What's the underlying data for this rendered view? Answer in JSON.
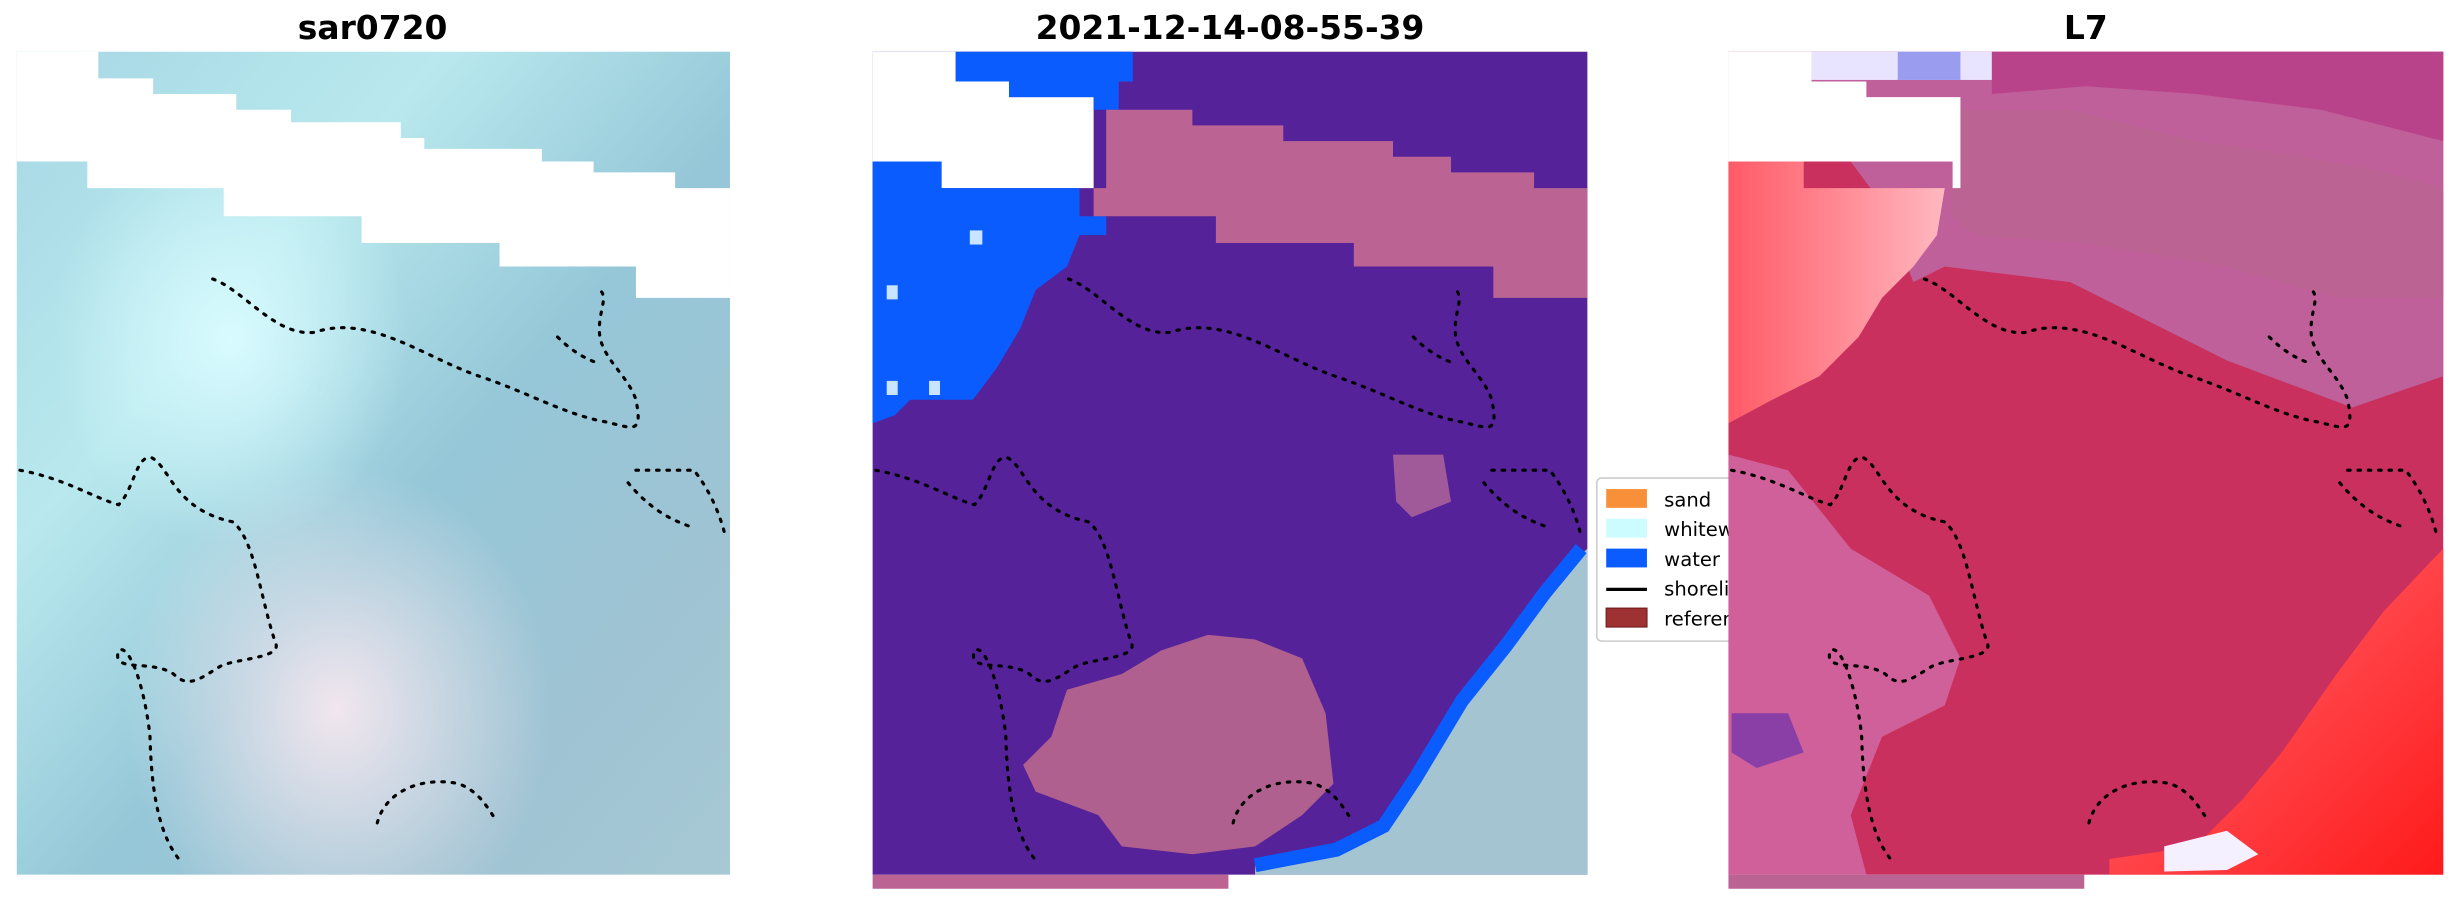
{
  "chart_data": [
    {
      "type": "heatmap",
      "title": "sar0720",
      "content": "RGB satellite image with shoreline overlay"
    },
    {
      "type": "heatmap",
      "title": "2021-12-14-08-55-39",
      "content": "classified image with shoreline overlay"
    },
    {
      "type": "heatmap",
      "title": "L7",
      "content": "classified image with shoreline overlay"
    }
  ],
  "legend": {
    "placement": "between middle and right panels",
    "items": [
      {
        "label": "sand",
        "color": "#f8903a",
        "kind": "patch"
      },
      {
        "label": "whitewater",
        "color": "#ccfcff",
        "kind": "patch"
      },
      {
        "label": "water",
        "color": "#0a5cff",
        "kind": "patch"
      },
      {
        "label": "shoreline",
        "color": "#000000",
        "kind": "line"
      },
      {
        "label": "reference",
        "color": "#9e3131",
        "kind": "patch"
      }
    ]
  },
  "colors": {
    "sar_base": "#8fc6d6",
    "class_other": "#55229a",
    "class_pink": "#bb6493",
    "water": "#0a5cff",
    "l7_base": "#c9305e"
  }
}
